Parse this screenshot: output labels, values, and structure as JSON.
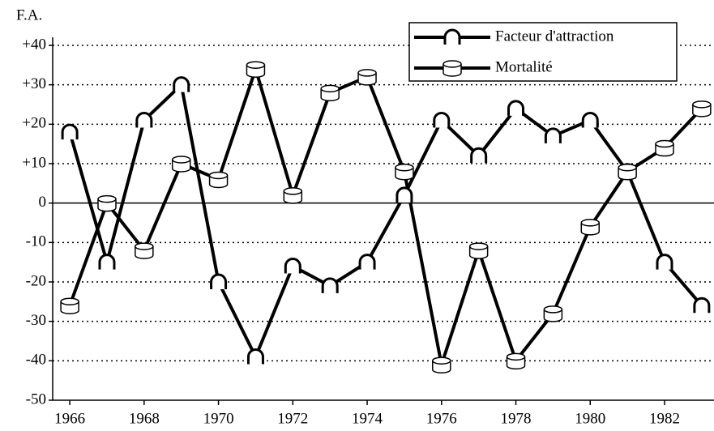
{
  "chart_data": {
    "type": "line",
    "y_label": "F.A.",
    "x": [
      1966,
      1967,
      1968,
      1969,
      1970,
      1971,
      1972,
      1973,
      1974,
      1975,
      1976,
      1977,
      1978,
      1979,
      1980,
      1981,
      1982,
      1983
    ],
    "series": [
      {
        "name": "Facteur d'attraction",
        "color": "#000000",
        "marker": "horseshoe",
        "values": [
          18,
          -15,
          21,
          30,
          -20,
          -39,
          -16,
          -21,
          -15,
          2,
          21,
          12,
          24,
          17,
          21,
          8,
          -15,
          -26
        ]
      },
      {
        "name": "Mortalité",
        "color": "#000000",
        "marker": "cylinder",
        "values": [
          -26,
          0,
          -12,
          10,
          6,
          34,
          2,
          28,
          32,
          8,
          -41,
          -12,
          -40,
          -28,
          -6,
          8,
          14,
          24
        ]
      }
    ],
    "xlim": [
      1965.54,
      1983.33
    ],
    "xticks": [
      1966,
      1968,
      1970,
      1972,
      1974,
      1976,
      1978,
      1980,
      1982
    ],
    "ylim": [
      -50,
      40
    ],
    "yticks": [
      {
        "value": 40,
        "label": "+40"
      },
      {
        "value": 30,
        "label": "+30"
      },
      {
        "value": 20,
        "label": "+20"
      },
      {
        "value": 10,
        "label": "+10"
      },
      0,
      -10,
      -20,
      -30,
      -40,
      -50
    ],
    "grid": true,
    "legend": "top-right"
  }
}
